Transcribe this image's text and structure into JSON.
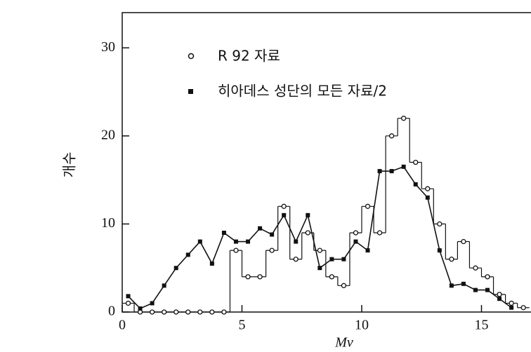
{
  "chart_data": {
    "type": "line",
    "y_label": "개수",
    "x_label": "Mv",
    "xlim": [
      0,
      17
    ],
    "ylim": [
      0,
      34
    ],
    "xticks": [
      0,
      5,
      10,
      15
    ],
    "yticks": [
      0,
      10,
      20,
      30
    ],
    "series": [
      {
        "name": "R 92 자료",
        "color": "#111111",
        "marker": "open-circle",
        "style": "step",
        "x": [
          0.25,
          0.75,
          1.25,
          1.75,
          2.25,
          2.75,
          3.25,
          3.75,
          4.25,
          4.75,
          5.25,
          5.75,
          6.25,
          6.75,
          7.25,
          7.75,
          8.25,
          8.75,
          9.25,
          9.75,
          10.25,
          10.75,
          11.25,
          11.75,
          12.25,
          12.75,
          13.25,
          13.75,
          14.25,
          14.75,
          15.25,
          15.75,
          16.25,
          16.75
        ],
        "values": [
          1,
          0,
          0,
          0,
          0,
          0,
          0,
          0,
          0,
          7,
          4,
          4,
          7,
          12,
          6,
          9,
          7,
          4,
          3,
          9,
          12,
          9,
          20,
          22,
          17,
          14,
          10,
          6,
          8,
          5,
          4,
          2,
          1,
          0.5
        ]
      },
      {
        "name": "히아데스 성단의 모든 자료/2",
        "color": "#111111",
        "marker": "filled-square",
        "style": "line",
        "x": [
          0.25,
          0.75,
          1.25,
          1.75,
          2.25,
          2.75,
          3.25,
          3.75,
          4.25,
          4.75,
          5.25,
          5.75,
          6.25,
          6.75,
          7.25,
          7.75,
          8.25,
          8.75,
          9.25,
          9.75,
          10.25,
          10.75,
          11.25,
          11.75,
          12.25,
          12.75,
          13.25,
          13.75,
          14.25,
          14.75,
          15.25,
          15.75,
          16.25
        ],
        "values": [
          1.8,
          0.4,
          1,
          3,
          5,
          6.5,
          8,
          5.5,
          9,
          8,
          8,
          9.5,
          8.8,
          11,
          8,
          11,
          5,
          6,
          6,
          8,
          7,
          16,
          16,
          16.5,
          14.5,
          13,
          7,
          3,
          3.2,
          2.5,
          2.5,
          1.5,
          0.5
        ]
      }
    ]
  }
}
